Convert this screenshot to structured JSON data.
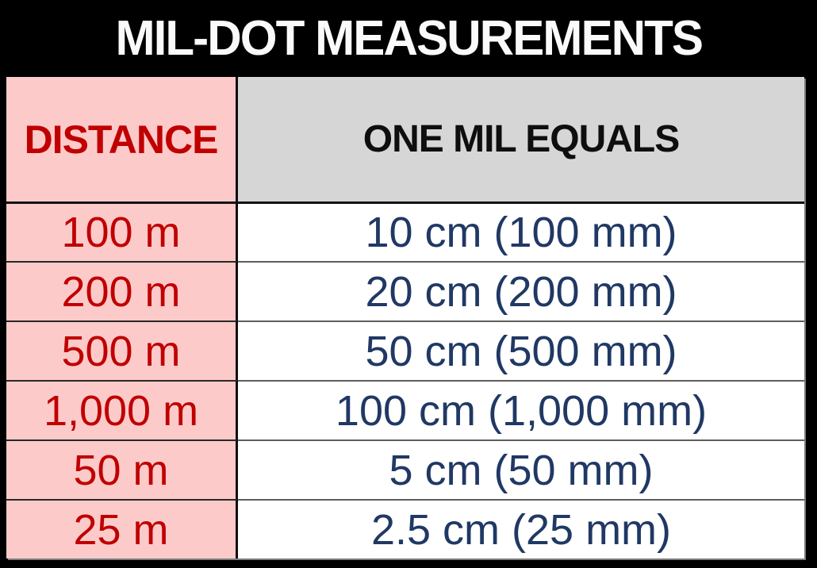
{
  "title": "MIL-DOT MEASUREMENTS",
  "colors": {
    "page_background": "#000000",
    "title_text": "#fafafa",
    "distance_column_bg": "#fdcaca",
    "header_right_bg": "#d6d6d6",
    "distance_text": "#c00000",
    "value_text": "#203864",
    "header_right_text": "#0e0e0e",
    "column_divider": "#0c0c0c",
    "row_separator": "#5e5e5e"
  },
  "table": {
    "headers": [
      {
        "label": "DISTANCE"
      },
      {
        "label": "ONE MIL EQUALS"
      }
    ],
    "rows": [
      {
        "distance": "100 m",
        "value": "10 cm (100 mm)"
      },
      {
        "distance": "200 m",
        "value": "20 cm (200 mm)"
      },
      {
        "distance": "500 m",
        "value": "50 cm (500 mm)"
      },
      {
        "distance": "1,000 m",
        "value": "100 cm (1,000 mm)"
      },
      {
        "distance": "50 m",
        "value": "5 cm (50 mm)"
      },
      {
        "distance": "25 m",
        "value": "2.5 cm (25 mm)"
      }
    ]
  },
  "chart_data": {
    "type": "table",
    "title": "MIL-DOT MEASUREMENTS",
    "columns": [
      "DISTANCE",
      "ONE MIL EQUALS"
    ],
    "rows": [
      [
        "100 m",
        "10 cm (100 mm)"
      ],
      [
        "200 m",
        "20 cm (200 mm)"
      ],
      [
        "500 m",
        "50 cm (500 mm)"
      ],
      [
        "1,000 m",
        "100 cm (1,000 mm)"
      ],
      [
        "50 m",
        "5 cm (50 mm)"
      ],
      [
        "25 m",
        "2.5 cm (25 mm)"
      ]
    ]
  }
}
